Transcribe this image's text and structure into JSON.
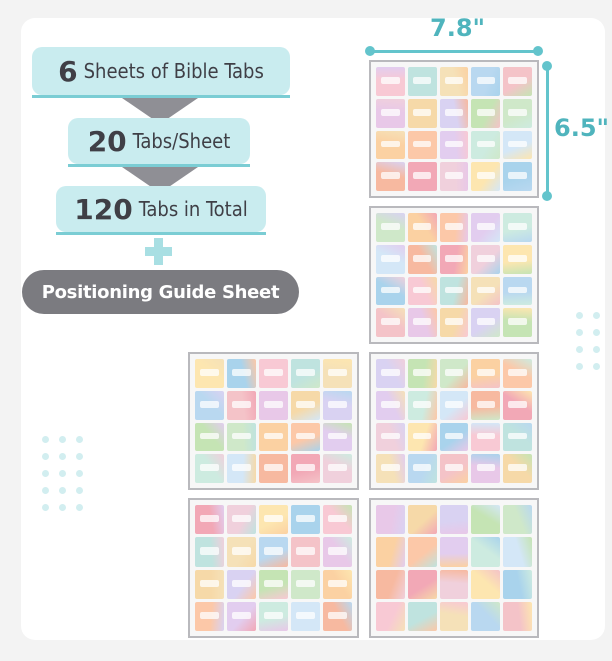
{
  "info": {
    "sheets": {
      "num": "6",
      "text": "Sheets of Bible Tabs"
    },
    "per_sheet": {
      "num": "20",
      "text": "Tabs/Sheet"
    },
    "total": {
      "num": "120",
      "text": "Tabs in Total"
    },
    "guide": "Positioning Guide Sheet"
  },
  "dimensions": {
    "width": "7.8\"",
    "height": "6.5\""
  },
  "palette": [
    "#f8c9d4",
    "#b9d8f0",
    "#f6d9a8",
    "#cfe8c9",
    "#e2cdef",
    "#f7b9a0",
    "#fde6b0",
    "#bfe3df",
    "#f4c3c8",
    "#d9d2f2",
    "#fbd1a2",
    "#cdebe0",
    "#f2a8b6",
    "#a9d3ec",
    "#f5e1b8",
    "#e8c8e8",
    "#c5e4b4",
    "#fcc8a8",
    "#d4e7f7",
    "#f0d0dc"
  ],
  "colors": {
    "banner": "#c9ecef",
    "accent": "#63c4cc",
    "pill": "#7b7b80"
  }
}
